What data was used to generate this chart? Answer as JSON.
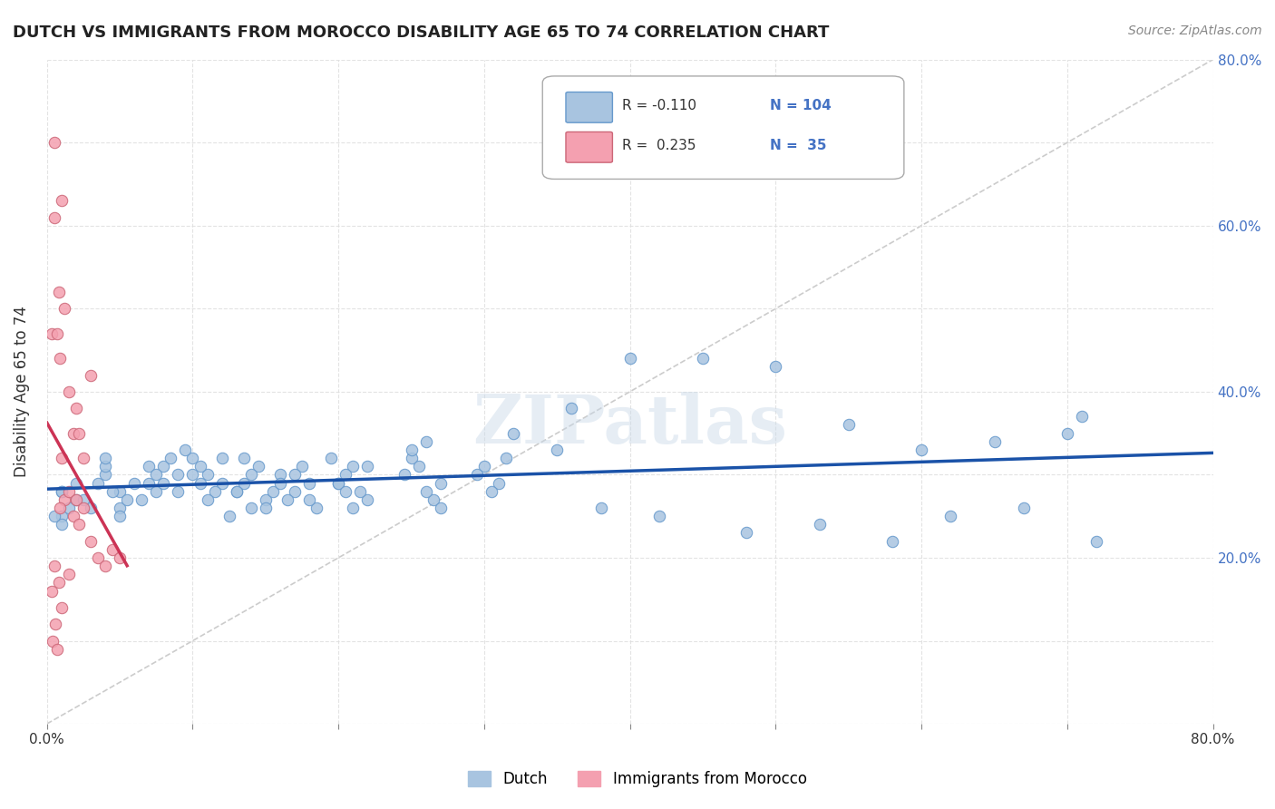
{
  "title": "DUTCH VS IMMIGRANTS FROM MOROCCO DISABILITY AGE 65 TO 74 CORRELATION CHART",
  "source": "Source: ZipAtlas.com",
  "ylabel": "Disability Age 65 to 74",
  "xlim": [
    0.0,
    0.8
  ],
  "ylim": [
    0.0,
    0.8
  ],
  "dutch_color": "#a8c4e0",
  "dutch_edge_color": "#6699cc",
  "morocco_color": "#f4a0b0",
  "morocco_edge_color": "#cc6677",
  "trend_dutch_color": "#1a52a8",
  "trend_morocco_color": "#cc3355",
  "diagonal_color": "#cccccc",
  "legend_dutch_R": "-0.110",
  "legend_dutch_N": "104",
  "legend_morocco_R": "0.235",
  "legend_morocco_N": "35",
  "watermark": "ZIPatlas",
  "dutch_x": [
    0.02,
    0.01,
    0.03,
    0.01,
    0.02,
    0.01,
    0.015,
    0.025,
    0.01,
    0.005,
    0.04,
    0.05,
    0.06,
    0.04,
    0.05,
    0.055,
    0.045,
    0.035,
    0.05,
    0.04,
    0.07,
    0.08,
    0.09,
    0.075,
    0.085,
    0.065,
    0.08,
    0.07,
    0.09,
    0.075,
    0.1,
    0.11,
    0.12,
    0.105,
    0.115,
    0.095,
    0.11,
    0.1,
    0.12,
    0.105,
    0.13,
    0.14,
    0.15,
    0.135,
    0.145,
    0.125,
    0.14,
    0.13,
    0.15,
    0.135,
    0.16,
    0.17,
    0.18,
    0.165,
    0.175,
    0.185,
    0.155,
    0.17,
    0.16,
    0.18,
    0.2,
    0.21,
    0.22,
    0.205,
    0.215,
    0.195,
    0.21,
    0.2,
    0.22,
    0.205,
    0.25,
    0.26,
    0.27,
    0.255,
    0.265,
    0.245,
    0.26,
    0.25,
    0.27,
    0.3,
    0.31,
    0.32,
    0.305,
    0.315,
    0.295,
    0.35,
    0.36,
    0.4,
    0.45,
    0.5,
    0.55,
    0.6,
    0.65,
    0.7,
    0.72,
    0.38,
    0.42,
    0.48,
    0.53,
    0.58,
    0.62,
    0.67,
    0.71
  ],
  "dutch_y": [
    0.27,
    0.25,
    0.26,
    0.28,
    0.29,
    0.24,
    0.26,
    0.27,
    0.28,
    0.25,
    0.3,
    0.28,
    0.29,
    0.31,
    0.26,
    0.27,
    0.28,
    0.29,
    0.25,
    0.32,
    0.29,
    0.31,
    0.3,
    0.28,
    0.32,
    0.27,
    0.29,
    0.31,
    0.28,
    0.3,
    0.32,
    0.3,
    0.29,
    0.31,
    0.28,
    0.33,
    0.27,
    0.3,
    0.32,
    0.29,
    0.28,
    0.26,
    0.27,
    0.29,
    0.31,
    0.25,
    0.3,
    0.28,
    0.26,
    0.32,
    0.3,
    0.28,
    0.29,
    0.27,
    0.31,
    0.26,
    0.28,
    0.3,
    0.29,
    0.27,
    0.29,
    0.31,
    0.27,
    0.3,
    0.28,
    0.32,
    0.26,
    0.29,
    0.31,
    0.28,
    0.32,
    0.34,
    0.29,
    0.31,
    0.27,
    0.3,
    0.28,
    0.33,
    0.26,
    0.31,
    0.29,
    0.35,
    0.28,
    0.32,
    0.3,
    0.33,
    0.38,
    0.44,
    0.44,
    0.43,
    0.36,
    0.33,
    0.34,
    0.35,
    0.22,
    0.26,
    0.25,
    0.23,
    0.24,
    0.22,
    0.25,
    0.26,
    0.37
  ],
  "morocco_x": [
    0.005,
    0.01,
    0.005,
    0.008,
    0.012,
    0.003,
    0.007,
    0.009,
    0.015,
    0.02,
    0.018,
    0.022,
    0.01,
    0.025,
    0.03,
    0.005,
    0.008,
    0.003,
    0.01,
    0.006,
    0.004,
    0.007,
    0.012,
    0.015,
    0.009,
    0.02,
    0.018,
    0.025,
    0.022,
    0.03,
    0.035,
    0.04,
    0.045,
    0.05,
    0.015
  ],
  "morocco_y": [
    0.7,
    0.63,
    0.61,
    0.52,
    0.5,
    0.47,
    0.47,
    0.44,
    0.4,
    0.38,
    0.35,
    0.35,
    0.32,
    0.32,
    0.42,
    0.19,
    0.17,
    0.16,
    0.14,
    0.12,
    0.1,
    0.09,
    0.27,
    0.28,
    0.26,
    0.27,
    0.25,
    0.26,
    0.24,
    0.22,
    0.2,
    0.19,
    0.21,
    0.2,
    0.18
  ]
}
